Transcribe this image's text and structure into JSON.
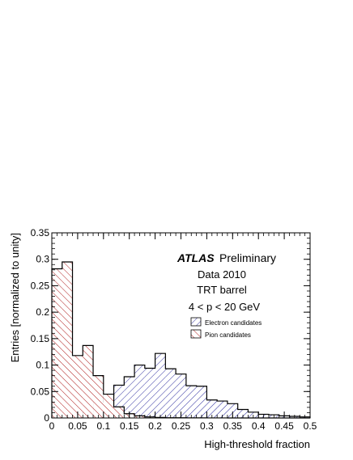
{
  "chart_data": {
    "type": "histogram",
    "xlabel": "High-threshold fraction",
    "ylabel": "Entries [normalized to unity]",
    "xlim": [
      0,
      0.5
    ],
    "ylim": [
      0,
      0.35
    ],
    "x_ticks": [
      "0",
      "0.05",
      "0.1",
      "0.15",
      "0.2",
      "0.25",
      "0.3",
      "0.35",
      "0.4",
      "0.45",
      "0.5"
    ],
    "y_ticks": [
      "0",
      "0.05",
      "0.1",
      "0.15",
      "0.2",
      "0.25",
      "0.3",
      "0.35"
    ],
    "bin_width": 0.02,
    "bin_edges": [
      0,
      0.02,
      0.04,
      0.06,
      0.08,
      0.1,
      0.12,
      0.14,
      0.16,
      0.18,
      0.2,
      0.22,
      0.24,
      0.26,
      0.28,
      0.3,
      0.32,
      0.34,
      0.36,
      0.38,
      0.4,
      0.42,
      0.44,
      0.46,
      0.48,
      0.5
    ],
    "grid": false,
    "series": [
      {
        "name": "Electron candidates",
        "color": "#2b2b9e",
        "hatch": "diagonal-blue",
        "values": [
          0.003,
          0.005,
          0.008,
          0.011,
          0.03,
          0.043,
          0.062,
          0.078,
          0.1,
          0.094,
          0.122,
          0.093,
          0.083,
          0.061,
          0.06,
          0.034,
          0.032,
          0.027,
          0.016,
          0.011,
          0.007,
          0.006,
          0.004,
          0.003,
          0.002
        ]
      },
      {
        "name": "Pion candidates",
        "color": "#b02020",
        "hatch": "diagonal-red",
        "values": [
          0.282,
          0.295,
          0.118,
          0.137,
          0.08,
          0.045,
          0.021,
          0.008,
          0.004,
          0.002,
          0.001,
          0.0005,
          0.0005,
          0.0003,
          0.0002,
          0.0001,
          0.0001,
          0,
          0,
          0,
          0,
          0,
          0,
          0,
          0
        ]
      }
    ],
    "annotations": {
      "experiment": "ATLAS",
      "status": "Preliminary",
      "data": "Data 2010",
      "detector": "TRT barrel",
      "momentum": "4 < p < 20 GeV"
    },
    "legend_position": "upper-right"
  }
}
